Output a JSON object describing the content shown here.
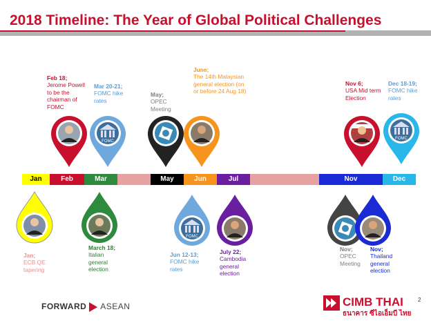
{
  "title": "2018 Timeline: The Year of Global Political Challenges",
  "timeline": {
    "segments": [
      {
        "label": "Jan",
        "color": "#ffff00",
        "text_color": "#000000"
      },
      {
        "label": "Feb",
        "color": "#c8102e",
        "text_color": "#ffffff"
      },
      {
        "label": "Mar",
        "color": "#2e8b3e",
        "text_color": "#ffffff"
      },
      {
        "label": "",
        "color": "#e8a1a1",
        "text_color": "#000000"
      },
      {
        "label": "May",
        "color": "#000000",
        "text_color": "#ffffff"
      },
      {
        "label": "Jun",
        "color": "#f7941d",
        "text_color": "#ffffff"
      },
      {
        "label": "Jul",
        "color": "#6a1fa0",
        "text_color": "#ffffff"
      },
      {
        "label": "",
        "color": "#e8a1a1",
        "text_color": "#000000"
      },
      {
        "label": "Nov",
        "color": "#1a2bd6",
        "text_color": "#ffffff"
      },
      {
        "label": "Dec",
        "color": "#29b6e8",
        "text_color": "#ffffff"
      }
    ]
  },
  "events_top": [
    {
      "date": "Feb 18;",
      "text": "Jerome Powell to be the chairman of FOMC",
      "color": "#c8102e",
      "icon": "portrait-icon"
    },
    {
      "date": "Mar 20-21;",
      "text": "FOMC hike rates",
      "color": "#5b9bd5",
      "icon": "fomc-building-icon"
    },
    {
      "date": "May;",
      "text": "OPEC Meeting",
      "color": "#7f7f7f",
      "icon": "opec-logo-icon"
    },
    {
      "date": "June;",
      "text": "The 14th Malaysian general election (on or before 24 Aug 18)",
      "color": "#f7941d",
      "icon": "portrait-icon"
    },
    {
      "date": "Nov 6;",
      "text": "USA Mid term Election",
      "color": "#c8102e",
      "icon": "portrait-icon"
    },
    {
      "date": "Dec 18-19;",
      "text": "FOMC hike rates",
      "color": "#5b9bd5",
      "icon": "fomc-building-icon"
    }
  ],
  "events_bottom": [
    {
      "date": "Jan;",
      "text": "ECB QE tapering",
      "color": "#f28c8c",
      "icon": "portrait-icon"
    },
    {
      "date": "March 18;",
      "text": "Italian general election",
      "color": "#2e7d32",
      "icon": "portrait-icon"
    },
    {
      "date": "Jun 12-13;",
      "text": "FOMC hike rates",
      "color": "#5b9bd5",
      "icon": "fomc-building-icon"
    },
    {
      "date": "July 22;",
      "text": "Cambodia general election",
      "color": "#6a1fa0",
      "icon": "portrait-icon"
    },
    {
      "date": "Nov;",
      "text": "OPEC Meeting",
      "color": "#7f7f7f",
      "icon": "opec-logo-icon"
    },
    {
      "date": "Nov;",
      "text": "Thailand general election",
      "color": "#1a2bd6",
      "icon": "portrait-icon"
    }
  ],
  "fomc_label": "FOMC",
  "footer": {
    "forward": "FORWARD",
    "asean": "ASEAN",
    "brand": "CIMB THAI",
    "brand_thai": "ธนาคาร ซีไอเอ็มบี ไทย",
    "page": "2"
  }
}
